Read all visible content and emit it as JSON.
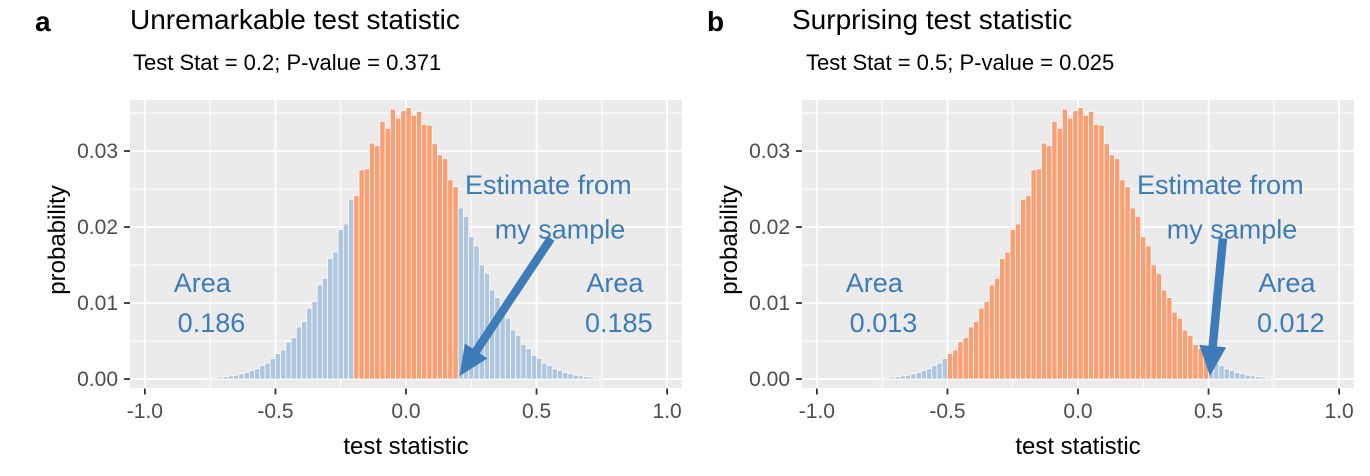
{
  "chart_data": {
    "type": "bar",
    "subtype": "histogram-pair",
    "xlabel": "test statistic",
    "ylabel": "probability",
    "x_ticks": [
      "-1.0",
      "-0.5",
      "0.0",
      "0.5",
      "1.0"
    ],
    "x_tick_values": [
      -1.0,
      -0.5,
      0.0,
      0.5,
      1.0
    ],
    "y_ticks": [
      "0.00",
      "0.01",
      "0.02",
      "0.03"
    ],
    "y_tick_values": [
      0.0,
      0.01,
      0.02,
      0.03
    ],
    "x_minor_values": [
      -0.75,
      -0.25,
      0.25,
      0.75
    ],
    "y_minor_values": [
      0.005,
      0.015,
      0.025,
      0.035
    ],
    "xlim": [
      -1.057,
      1.057
    ],
    "ylim": [
      -0.0012,
      0.0367
    ],
    "grid": true,
    "bin_width": 0.02,
    "bin_centers": [
      -0.75,
      -0.73,
      -0.71,
      -0.69,
      -0.67,
      -0.65,
      -0.63,
      -0.61,
      -0.59,
      -0.57,
      -0.55,
      -0.53,
      -0.51,
      -0.49,
      -0.47,
      -0.45,
      -0.43,
      -0.41,
      -0.39,
      -0.37,
      -0.35,
      -0.33,
      -0.31,
      -0.29,
      -0.27,
      -0.25,
      -0.23,
      -0.21,
      -0.19,
      -0.17,
      -0.15,
      -0.13,
      -0.11,
      -0.09,
      -0.07,
      -0.05,
      -0.03,
      -0.01,
      0.01,
      0.03,
      0.05,
      0.07,
      0.09,
      0.11,
      0.13,
      0.15,
      0.17,
      0.19,
      0.21,
      0.23,
      0.25,
      0.27,
      0.29,
      0.31,
      0.33,
      0.35,
      0.37,
      0.39,
      0.41,
      0.43,
      0.45,
      0.47,
      0.49,
      0.51,
      0.53,
      0.55,
      0.57,
      0.59,
      0.61,
      0.63,
      0.65,
      0.67,
      0.69,
      0.71,
      0.73,
      0.75
    ],
    "bin_probs": [
      0.00013,
      0.00016,
      0.00024,
      0.00029,
      0.00041,
      0.0005,
      0.00069,
      0.00083,
      0.00113,
      0.00134,
      0.00178,
      0.00208,
      0.00271,
      0.00334,
      0.0038,
      0.00488,
      0.00545,
      0.00684,
      0.00757,
      0.00934,
      0.01017,
      0.01237,
      0.01325,
      0.01585,
      0.0167,
      0.01967,
      0.0204,
      0.02365,
      0.02413,
      0.02753,
      0.02765,
      0.03104,
      0.03068,
      0.0339,
      0.03297,
      0.0355,
      0.03431,
      0.0353,
      0.0357,
      0.0347,
      0.0352,
      0.0335,
      0.0334,
      0.031,
      0.0295,
      0.029,
      0.0262,
      0.0253,
      0.0225,
      0.0214,
      0.0187,
      0.0175,
      0.015,
      0.0139,
      0.0117,
      0.0107,
      0.0088,
      0.008,
      0.00645,
      0.00575,
      0.00455,
      0.004,
      0.00312,
      0.00271,
      0.00208,
      0.00178,
      0.00134,
      0.00113,
      0.00083,
      0.00069,
      0.0005,
      0.00041,
      0.00029,
      0.00024,
      0.00016,
      0.00013
    ],
    "colors": {
      "center_fill": "#FA9E73",
      "tail_fill": "#AEC6DE",
      "annotation_blue": "#3D7CB8",
      "panel_bg": "#EBEBEB",
      "grid_line": "#FFFFFF",
      "tick_mark": "#333333",
      "tick_label": "#4D4D4D",
      "axis_title": "#000000"
    },
    "panels": [
      {
        "tag": "a",
        "title": "Unremarkable test statistic",
        "subtitle": "Test Stat = 0.2; P-value = 0.371",
        "test_stat": 0.2,
        "p_value": 0.371,
        "highlight_threshold": 0.2,
        "area_left_label": "Area",
        "area_left_value": "0.186",
        "area_right_label": "Area",
        "area_right_value": "0.185",
        "annotation_line1": "Estimate from",
        "annotation_line2": "my sample"
      },
      {
        "tag": "b",
        "title": "Surprising test statistic",
        "subtitle": "Test Stat = 0.5; P-value = 0.025",
        "test_stat": 0.5,
        "p_value": 0.025,
        "highlight_threshold": 0.5,
        "area_left_label": "Area",
        "area_left_value": "0.013",
        "area_right_label": "Area",
        "area_right_value": "0.012",
        "annotation_line1": "Estimate from",
        "annotation_line2": "my sample"
      }
    ]
  }
}
